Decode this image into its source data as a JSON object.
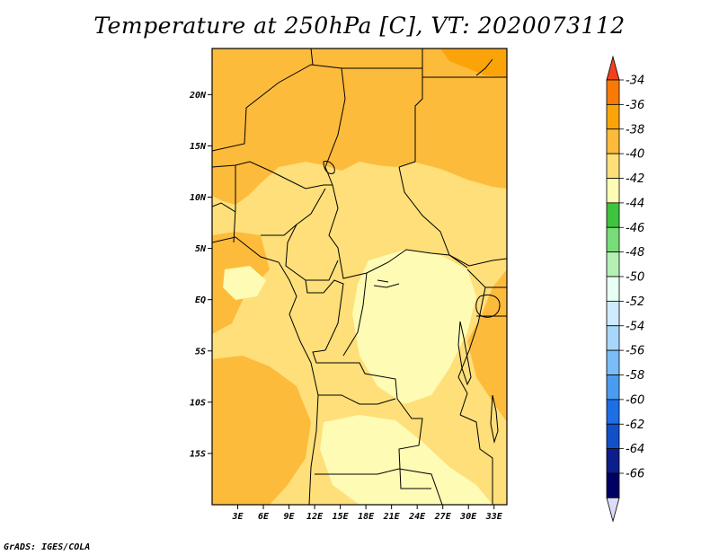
{
  "title": "Temperature at 250hPa [C], VT: 2020073112",
  "footer": "GrADS: IGES/COLA",
  "map": {
    "lon_range": [
      0,
      34.5
    ],
    "lat_range": [
      -20,
      24.5
    ],
    "lon_ticks": [
      "3E",
      "6E",
      "9E",
      "12E",
      "15E",
      "18E",
      "21E",
      "24E",
      "27E",
      "30E",
      "33E"
    ],
    "lat_ticks": [
      "20N",
      "15N",
      "10N",
      "5N",
      "EQ",
      "5S",
      "10S",
      "15S"
    ]
  },
  "colorbar": {
    "labels": [
      "-34",
      "-36",
      "-38",
      "-40",
      "-42",
      "-44",
      "-46",
      "-48",
      "-50",
      "-52",
      "-54",
      "-56",
      "-58",
      "-60",
      "-62",
      "-64",
      "-66"
    ],
    "colors": [
      "#f0421e",
      "#fa7a06",
      "#fba40a",
      "#fdbb3c",
      "#fedf7a",
      "#fefbb4",
      "#3ec43e",
      "#78dc78",
      "#b4f0b4",
      "#e8fff4",
      "#cdeaff",
      "#a8d6fa",
      "#7abcf5",
      "#4a9cf0",
      "#1e6ee6",
      "#1250c8",
      "#0c1e8c",
      "#000064",
      "#dcdcf8"
    ]
  }
}
